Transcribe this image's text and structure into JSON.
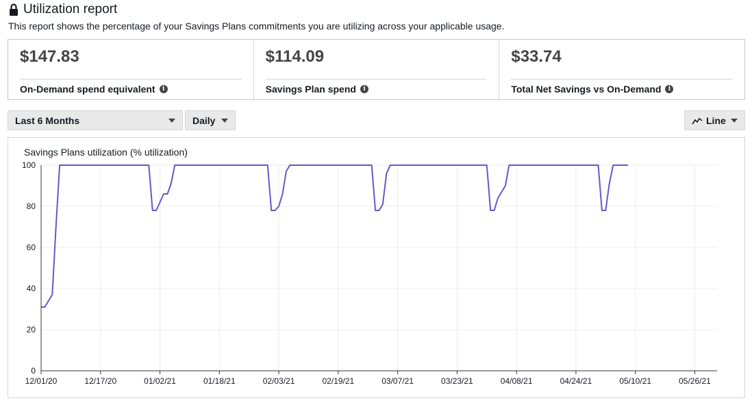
{
  "header": {
    "title": "Utilization report",
    "subtitle": "This report shows the percentage of your Savings Plans commitments you are utilizing across your applicable usage."
  },
  "summary": [
    {
      "value": "$147.83",
      "label": "On-Demand spend equivalent"
    },
    {
      "value": "$114.09",
      "label": "Savings Plan spend"
    },
    {
      "value": "$33.74",
      "label": "Total Net Savings vs On-Demand"
    }
  ],
  "controls": {
    "range": "Last 6 Months",
    "granularity": "Daily",
    "chart_type": "Line"
  },
  "colors": {
    "series": "#6b55c8",
    "grid": "#ececec",
    "axis": "#333333"
  },
  "chart_data": {
    "type": "line",
    "title": "Savings Plans utilization (% utilization)",
    "xlabel": "",
    "ylabel": "",
    "x_ticks": [
      "12/01/20",
      "12/17/20",
      "01/02/21",
      "01/18/21",
      "02/03/21",
      "02/19/21",
      "03/07/21",
      "03/23/21",
      "04/08/21",
      "04/24/21",
      "05/10/21",
      "05/26/21"
    ],
    "x_start": "2020-12-01",
    "x_end": "2021-06-01",
    "ylim": [
      0,
      100
    ],
    "y_ticks": [
      0,
      20,
      40,
      60,
      80,
      100
    ],
    "grid": true,
    "legend": "none",
    "series": [
      {
        "name": "",
        "points": [
          [
            "2020-12-01",
            31
          ],
          [
            "2020-12-02",
            31
          ],
          [
            "2020-12-04",
            37
          ],
          [
            "2020-12-05",
            70
          ],
          [
            "2020-12-06",
            100
          ],
          [
            "2020-12-30",
            100
          ],
          [
            "2020-12-31",
            78
          ],
          [
            "2021-01-01",
            78
          ],
          [
            "2021-01-03",
            86
          ],
          [
            "2021-01-04",
            86
          ],
          [
            "2021-01-05",
            91
          ],
          [
            "2021-01-06",
            100
          ],
          [
            "2021-01-31",
            100
          ],
          [
            "2021-02-01",
            78
          ],
          [
            "2021-02-02",
            78
          ],
          [
            "2021-02-03",
            80
          ],
          [
            "2021-02-04",
            86
          ],
          [
            "2021-02-05",
            97
          ],
          [
            "2021-02-06",
            100
          ],
          [
            "2021-02-28",
            100
          ],
          [
            "2021-03-01",
            78
          ],
          [
            "2021-03-02",
            78
          ],
          [
            "2021-03-03",
            81
          ],
          [
            "2021-03-04",
            96
          ],
          [
            "2021-03-05",
            100
          ],
          [
            "2021-03-31",
            100
          ],
          [
            "2021-04-01",
            78
          ],
          [
            "2021-04-02",
            78
          ],
          [
            "2021-04-03",
            84
          ],
          [
            "2021-04-05",
            90
          ],
          [
            "2021-04-06",
            100
          ],
          [
            "2021-04-30",
            100
          ],
          [
            "2021-05-01",
            78
          ],
          [
            "2021-05-02",
            78
          ],
          [
            "2021-05-03",
            91
          ],
          [
            "2021-05-04",
            100
          ],
          [
            "2021-05-08",
            100
          ]
        ]
      }
    ]
  }
}
